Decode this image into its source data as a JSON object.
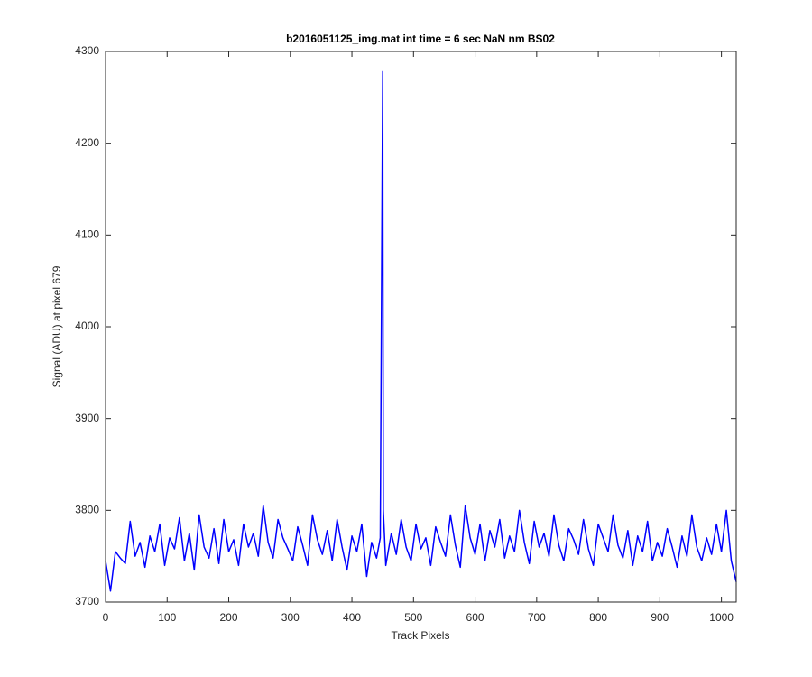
{
  "chart_data": {
    "type": "line",
    "title": "b2016051125_img.mat int time = 6 sec  NaN nm BS02",
    "x_label": "Track Pixels",
    "y_label": "Signal (ADU) at pixel 679",
    "color": "#0000ff",
    "grid": false,
    "xlim": [
      0,
      1024
    ],
    "ylim": [
      3700,
      4300
    ],
    "xticks": [
      0,
      100,
      200,
      300,
      400,
      500,
      600,
      700,
      800,
      900,
      1000
    ],
    "yticks": [
      3700,
      3800,
      3900,
      4000,
      4100,
      4200,
      4300
    ],
    "x": [
      0,
      8,
      16,
      24,
      32,
      40,
      48,
      56,
      64,
      72,
      80,
      88,
      96,
      104,
      112,
      120,
      128,
      136,
      144,
      152,
      160,
      168,
      176,
      184,
      192,
      200,
      208,
      216,
      224,
      232,
      240,
      248,
      256,
      264,
      272,
      280,
      288,
      296,
      304,
      312,
      320,
      328,
      336,
      344,
      352,
      360,
      368,
      376,
      384,
      392,
      400,
      408,
      416,
      424,
      432,
      440,
      446,
      450,
      451,
      455,
      464,
      472,
      480,
      488,
      496,
      504,
      512,
      520,
      528,
      536,
      544,
      552,
      560,
      568,
      576,
      584,
      592,
      600,
      608,
      616,
      624,
      632,
      640,
      648,
      656,
      664,
      672,
      680,
      688,
      696,
      704,
      712,
      720,
      728,
      736,
      744,
      752,
      760,
      768,
      776,
      784,
      792,
      800,
      808,
      816,
      824,
      832,
      840,
      848,
      856,
      864,
      872,
      880,
      888,
      896,
      904,
      912,
      920,
      928,
      936,
      944,
      952,
      960,
      968,
      976,
      984,
      992,
      1000,
      1008,
      1016,
      1024
    ],
    "values": [
      3745,
      3712,
      3755,
      3748,
      3742,
      3788,
      3750,
      3765,
      3738,
      3772,
      3755,
      3785,
      3740,
      3770,
      3758,
      3792,
      3745,
      3775,
      3735,
      3795,
      3760,
      3748,
      3780,
      3742,
      3790,
      3755,
      3768,
      3740,
      3785,
      3760,
      3775,
      3750,
      3805,
      3765,
      3748,
      3790,
      3770,
      3758,
      3745,
      3782,
      3762,
      3740,
      3795,
      3768,
      3752,
      3778,
      3745,
      3790,
      3760,
      3735,
      3772,
      3755,
      3785,
      3728,
      3765,
      3748,
      3770,
      4278,
      3800,
      3740,
      3775,
      3752,
      3790,
      3760,
      3745,
      3785,
      3758,
      3770,
      3740,
      3782,
      3765,
      3750,
      3795,
      3762,
      3738,
      3805,
      3770,
      3752,
      3785,
      3745,
      3778,
      3760,
      3790,
      3748,
      3772,
      3755,
      3800,
      3765,
      3742,
      3788,
      3760,
      3775,
      3750,
      3795,
      3762,
      3745,
      3780,
      3768,
      3752,
      3790,
      3758,
      3740,
      3785,
      3770,
      3755,
      3795,
      3762,
      3748,
      3778,
      3740,
      3772,
      3755,
      3788,
      3745,
      3765,
      3750,
      3780,
      3760,
      3738,
      3772,
      3750,
      3795,
      3760,
      3745,
      3770,
      3752,
      3785,
      3755,
      3800,
      3745,
      3722
    ]
  }
}
